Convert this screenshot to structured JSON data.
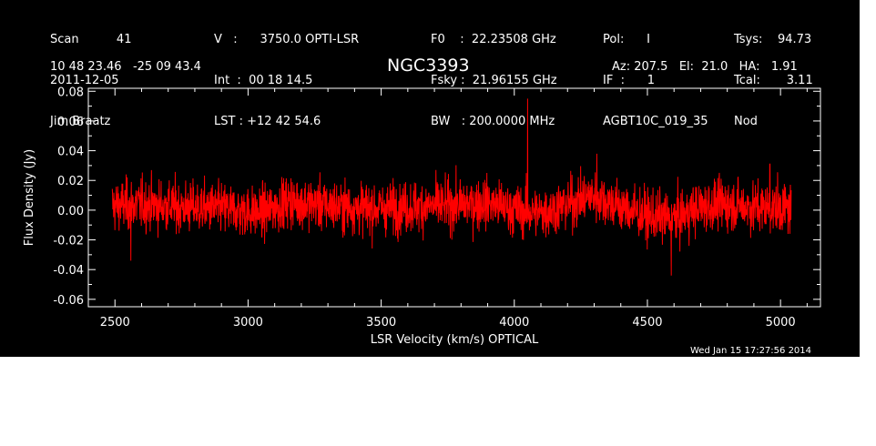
{
  "header": {
    "col1": [
      "Scan          41",
      "2011-12-05",
      "Jim Braatz"
    ],
    "col2": [
      "V   :      3750.0 OPTI-LSR",
      "Int  :  00 18 14.5",
      "LST : +12 42 54.6"
    ],
    "col3": [
      "F0    :  22.23508 GHz",
      "Fsky :  21.96155 GHz",
      "BW   : 200.0000 MHz"
    ],
    "col4": [
      "Pol:      I",
      "IF  :      1",
      "AGBT10C_019_35"
    ],
    "col5": [
      "Tsys:    94.73",
      "Tcal:       3.11",
      "Nod"
    ],
    "coords": "10 48 23.46   -25 09 43.4",
    "source": "NGC3393",
    "pointing": "Az: 207.5   El:  21.0   HA:   1.91"
  },
  "timestamp": "Wed Jan 15 17:27:56 2014",
  "colors": {
    "background": "#000000",
    "axes": "#ffffff",
    "trace": "#ff0000"
  },
  "chart_data": {
    "type": "line",
    "xlabel": "LSR Velocity (km/s) OPTICAL",
    "ylabel": "Flux Density (Jy)",
    "xlim": [
      2400,
      5150
    ],
    "ylim": [
      -0.065,
      0.082
    ],
    "xticks": [
      2500,
      3000,
      3500,
      4000,
      4500,
      5000
    ],
    "yticks": [
      -0.06,
      -0.04,
      -0.02,
      0.0,
      0.02,
      0.04,
      0.06,
      0.08
    ],
    "ytick_labels": [
      "-0.06",
      "-0.04",
      "-0.02",
      "0.00",
      "0.02",
      "0.04",
      "0.06",
      "0.08"
    ],
    "grid": false,
    "series": [
      {
        "color": "#ff0000",
        "x_range": [
          2490,
          5040
        ],
        "baseline": {
          "x": [
            2490,
            2600,
            2750,
            2900,
            3050,
            3150,
            3300,
            3450,
            3600,
            3750,
            3900,
            4000,
            4100,
            4200,
            4300,
            4400,
            4500,
            4600,
            4700,
            4800,
            4900,
            5040
          ],
          "y": [
            0.003,
            0.004,
            0.002,
            0.001,
            -0.002,
            0.006,
            0.003,
            0.001,
            0.002,
            0.003,
            0.005,
            0.0,
            -0.002,
            0.004,
            0.01,
            0.002,
            -0.004,
            -0.006,
            0.002,
            0.004,
            0.002,
            0.001
          ]
        },
        "noise_rms": 0.0085,
        "spikes": [
          {
            "x": 4050,
            "y": 0.075
          },
          {
            "x": 4310,
            "y": 0.038
          },
          {
            "x": 4590,
            "y": -0.044
          },
          {
            "x": 4960,
            "y": 0.031
          },
          {
            "x": 2560,
            "y": -0.034
          }
        ]
      }
    ]
  }
}
